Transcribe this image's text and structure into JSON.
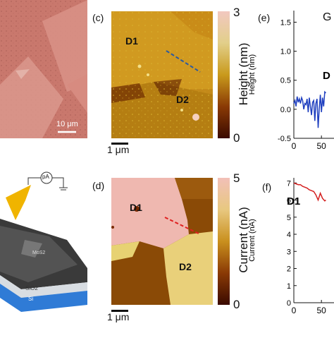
{
  "panels": {
    "a": {
      "scale_bar": "10 μm"
    },
    "b": {
      "meter_label": "pA",
      "layers": [
        "SiO2",
        "Si"
      ],
      "film_label": "MoS2"
    },
    "c": {
      "letter": "(c)",
      "labels": [
        "D1",
        "D2"
      ],
      "scale_bar": "1 μm",
      "colorbar": {
        "title": "Height (nm)",
        "max": "3",
        "min": "0"
      }
    },
    "d": {
      "letter": "(d)",
      "labels": [
        "D1",
        "D2"
      ],
      "scale_bar": "1 μm",
      "colorbar": {
        "title": "Current (nA)",
        "max": "5",
        "min": "0"
      }
    },
    "e": {
      "letter": "(e)",
      "title_fragment": "G",
      "ylabel": "Height (nm)",
      "yticks": [
        "1.5",
        "1.0",
        "0.5",
        "0.0",
        "-0.5"
      ],
      "xticks": [
        "0",
        "50"
      ],
      "annotation": "D"
    },
    "f": {
      "letter": "(f)",
      "ylabel": "Current (nA)",
      "yticks": [
        "7",
        "6",
        "5",
        "4",
        "3",
        "2",
        "1",
        "0"
      ],
      "xticks": [
        "0",
        "50"
      ],
      "annotation": "D1"
    }
  },
  "colors": {
    "height_trace": "#1f3fbf",
    "current_trace": "#d42020",
    "height_line": "#2c5aa0",
    "current_line": "#e02020"
  },
  "chart_data": [
    {
      "type": "line",
      "panel": "e",
      "ylabel": "Height (nm)",
      "ylim": [
        -0.5,
        1.7
      ],
      "xlim": [
        0,
        60
      ],
      "series": [
        {
          "x": [
            0,
            2,
            4,
            6,
            8,
            10,
            12,
            14,
            16,
            18,
            20,
            22,
            24,
            26,
            28,
            30,
            32,
            34,
            36,
            38,
            40,
            42,
            44,
            46,
            48,
            50,
            52,
            54,
            56,
            58
          ],
          "y": [
            0.1,
            0.15,
            0.05,
            0.22,
            0.12,
            0.18,
            0.1,
            0.2,
            0.15,
            0.0,
            0.1,
            0.08,
            0.18,
            -0.05,
            0.2,
            0.05,
            -0.1,
            0.12,
            0.15,
            -0.2,
            0.1,
            0.18,
            -0.32,
            0.0,
            0.25,
            -0.05,
            0.2,
            0.05,
            0.3,
            0.28
          ]
        }
      ]
    },
    {
      "type": "line",
      "panel": "f",
      "ylabel": "Current (nA)",
      "ylim": [
        0,
        7.3
      ],
      "xlim": [
        0,
        60
      ],
      "series": [
        {
          "x": [
            0,
            4,
            8,
            12,
            16,
            20,
            24,
            28,
            32,
            36,
            40,
            44,
            48,
            52,
            56,
            58
          ],
          "y": [
            7.0,
            6.95,
            6.9,
            6.9,
            6.8,
            6.75,
            6.7,
            6.6,
            6.55,
            6.5,
            6.3,
            6.0,
            6.4,
            6.1,
            5.95,
            6.0
          ]
        }
      ]
    }
  ]
}
